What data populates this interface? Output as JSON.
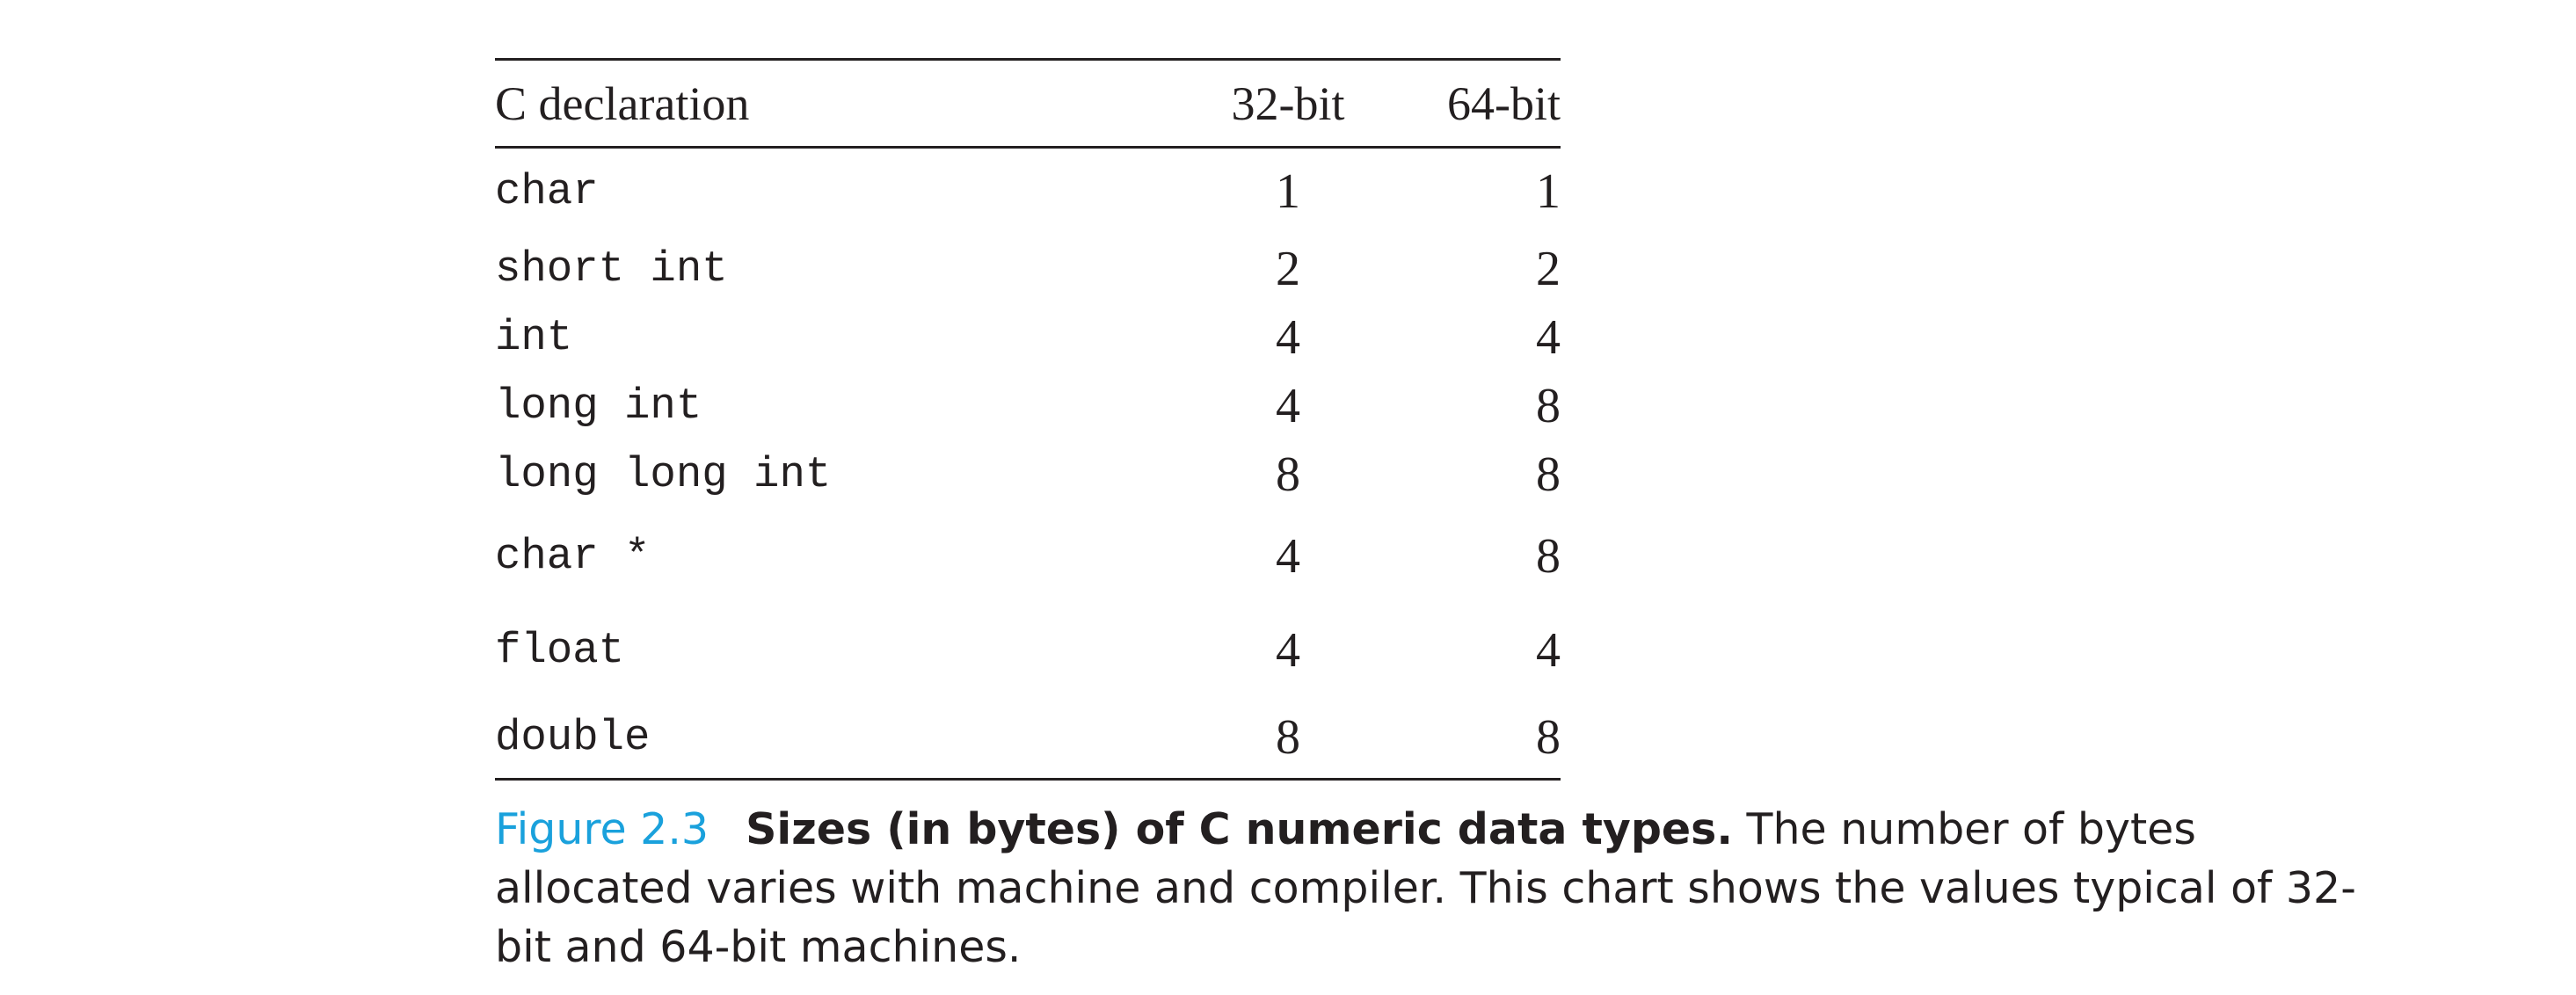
{
  "table": {
    "headers": {
      "declaration": "C declaration",
      "bit32": "32-bit",
      "bit64": "64-bit"
    },
    "rows": [
      {
        "decl": "char",
        "bit32": "1",
        "bit64": "1"
      },
      {
        "decl": "short int",
        "bit32": "2",
        "bit64": "2"
      },
      {
        "decl": "int",
        "bit32": "4",
        "bit64": "4"
      },
      {
        "decl": "long int",
        "bit32": "4",
        "bit64": "8"
      },
      {
        "decl": "long long int",
        "bit32": "8",
        "bit64": "8"
      },
      {
        "decl": "char *",
        "bit32": "4",
        "bit64": "8"
      },
      {
        "decl": "float",
        "bit32": "4",
        "bit64": "4"
      },
      {
        "decl": "double",
        "bit32": "8",
        "bit64": "8"
      }
    ]
  },
  "caption": {
    "label": "Figure 2.3",
    "title": "Sizes (in bytes) of C numeric data types.",
    "text": "The number of bytes allocated varies with machine and compiler. This chart shows the values typical of 32-bit and 64-bit machines."
  },
  "colors": {
    "figure_label": "#1aa1dc",
    "text": "#231f20"
  }
}
